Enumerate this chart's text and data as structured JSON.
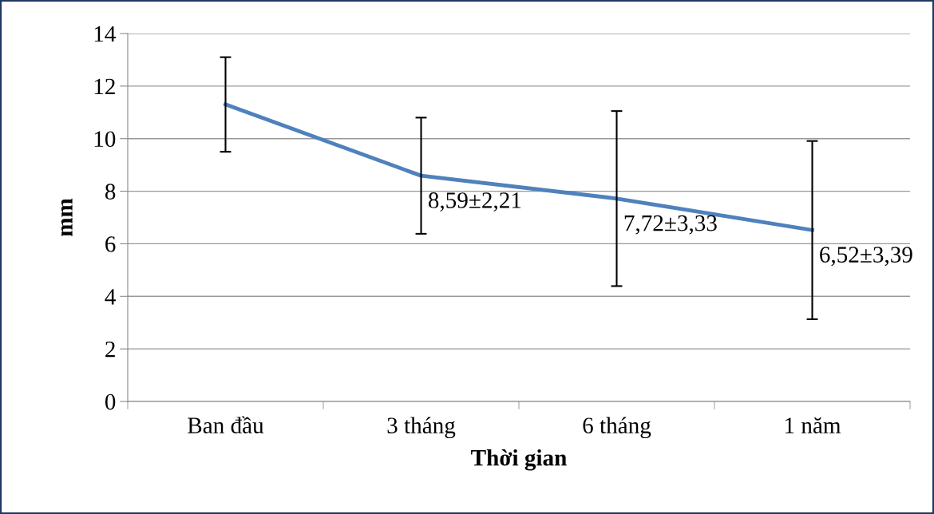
{
  "chart_data": {
    "type": "line",
    "xlabel": "Thời gian",
    "ylabel": "mm",
    "categories": [
      "Ban đầu",
      "3 tháng",
      "6 tháng",
      "1 năm"
    ],
    "series": [
      {
        "color": "#4f81bd",
        "values": [
          11.3,
          8.59,
          7.72,
          6.52
        ],
        "errors": [
          1.8,
          2.21,
          3.33,
          3.39
        ],
        "value_labels": [
          null,
          "8,59±2,21",
          "7,72±3,33",
          "6,52±3,39"
        ]
      }
    ],
    "ylim": [
      0,
      14
    ],
    "yticks": [
      0,
      2,
      4,
      6,
      8,
      10,
      12,
      14
    ],
    "grid": "y",
    "legend": false,
    "marker": "none",
    "line_style": "solid"
  }
}
